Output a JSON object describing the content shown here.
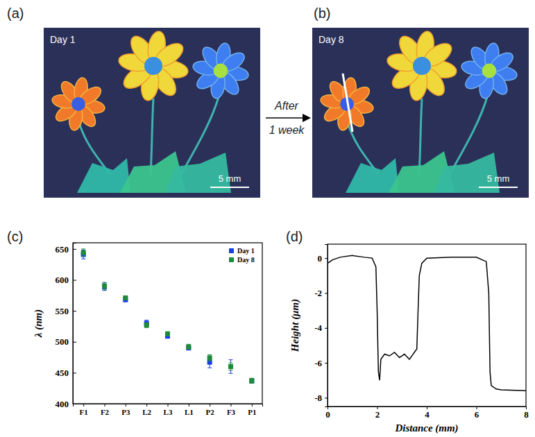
{
  "panel_labels": [
    "(a)",
    "(b)",
    "(c)",
    "(d)"
  ],
  "photos": [
    {
      "caption": "Day 1",
      "scale_bar": "5 mm"
    },
    {
      "caption": "Day 8",
      "scale_bar": "5 mm"
    }
  ],
  "arrow": {
    "top": "After",
    "bottom": "1 week"
  },
  "chart_data": [
    {
      "type": "scatter",
      "ylabel": "λ (nm)",
      "categories": [
        "F1",
        "F2",
        "P3",
        "L2",
        "L3",
        "L1",
        "P2",
        "F3",
        "P1"
      ],
      "ylim": [
        400,
        660
      ],
      "yticks": [
        400,
        450,
        500,
        550,
        600,
        650
      ],
      "legend": "top-right",
      "marker": "square",
      "series": [
        {
          "name": "Day 1",
          "color": "#1a3cf0",
          "values": [
            641,
            589,
            568,
            530,
            509,
            490,
            467,
            460,
            437
          ],
          "errors": [
            7,
            6,
            3,
            5,
            3,
            3,
            9,
            11,
            4
          ]
        },
        {
          "name": "Day 8",
          "color": "#1f8a3a",
          "values": [
            644,
            590,
            571,
            527,
            513,
            492,
            474,
            460,
            437
          ],
          "errors": [
            6,
            6,
            3,
            4,
            3,
            4,
            5,
            6,
            4
          ]
        }
      ]
    },
    {
      "type": "line",
      "xlabel": "Distance (mm)",
      "ylabel": "Height (μm)",
      "x": [
        0,
        0.2,
        0.5,
        1,
        1.5,
        1.8,
        1.95,
        2.0,
        2.05,
        2.1,
        2.15,
        2.3,
        2.5,
        2.7,
        2.9,
        3.1,
        3.3,
        3.5,
        3.6,
        3.65,
        3.7,
        3.8,
        4,
        5,
        6,
        6.4,
        6.5,
        6.55,
        6.6,
        6.8,
        7,
        8
      ],
      "values": [
        -0.3,
        -0.1,
        0.05,
        0.15,
        0.05,
        0,
        -0.5,
        -3,
        -6.5,
        -7.0,
        -5.8,
        -5.5,
        -5.6,
        -5.4,
        -5.7,
        -5.5,
        -5.8,
        -5.4,
        -5.2,
        -3,
        -1,
        -0.3,
        0,
        0.05,
        0.05,
        -0.2,
        -2,
        -6.5,
        -7.3,
        -7.5,
        -7.55,
        -7.6
      ],
      "color": "#000000",
      "xlim": [
        0,
        8
      ],
      "ylim": [
        -8.5,
        0.8
      ],
      "xticks": [
        0,
        2,
        4,
        6,
        8
      ],
      "yticks": [
        -8,
        -6,
        -4,
        -2,
        0
      ]
    }
  ]
}
